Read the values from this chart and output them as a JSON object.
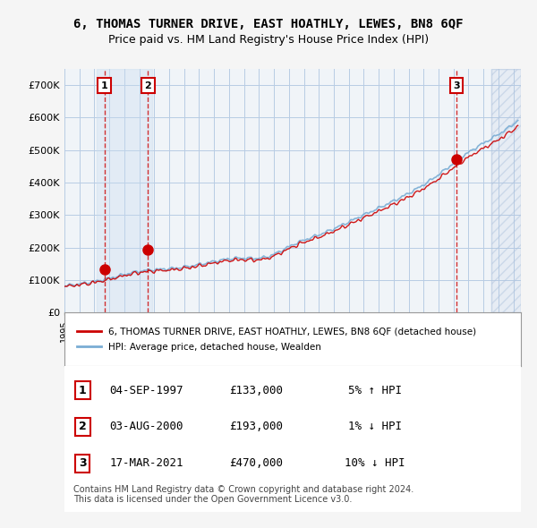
{
  "title": "6, THOMAS TURNER DRIVE, EAST HOATHLY, LEWES, BN8 6QF",
  "subtitle": "Price paid vs. HM Land Registry's House Price Index (HPI)",
  "legend_line1": "6, THOMAS TURNER DRIVE, EAST HOATHLY, LEWES, BN8 6QF (detached house)",
  "legend_line2": "HPI: Average price, detached house, Wealden",
  "sales": [
    {
      "num": 1,
      "date": "04-SEP-1997",
      "year": 1997.67,
      "price": 133000,
      "hpi_rel": "5% ↑ HPI"
    },
    {
      "num": 2,
      "date": "03-AUG-2000",
      "year": 2000.58,
      "price": 193000,
      "hpi_rel": "1% ↓ HPI"
    },
    {
      "num": 3,
      "date": "17-MAR-2021",
      "year": 2021.21,
      "price": 470000,
      "hpi_rel": "10% ↓ HPI"
    }
  ],
  "xmin": 1995.0,
  "xmax": 2025.5,
  "ymin": 0,
  "ymax": 750000,
  "yticks": [
    0,
    100000,
    200000,
    300000,
    400000,
    500000,
    600000,
    700000
  ],
  "ytick_labels": [
    "£0",
    "£100K",
    "£200K",
    "£300K",
    "£400K",
    "£500K",
    "£600K",
    "£700K"
  ],
  "hpi_color": "#a8c4e0",
  "price_color": "#cc0000",
  "sale_marker_color": "#cc0000",
  "dashed_color": "#cc0000",
  "bg_color": "#ffffff",
  "plot_bg_color": "#ffffff",
  "grid_color": "#b0c4de",
  "shade1_color": "#ddeeff",
  "shade2_color": "#ddeeff",
  "hatch_color": "#b0c4de",
  "footer": "Contains HM Land Registry data © Crown copyright and database right 2024.\nThis data is licensed under the Open Government Licence v3.0."
}
